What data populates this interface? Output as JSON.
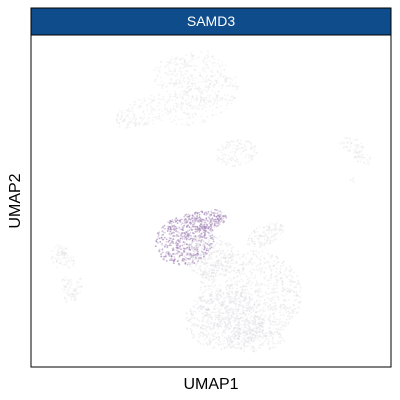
{
  "chart_data": {
    "type": "scatter",
    "title": "SAMD3",
    "xlabel": "UMAP1",
    "ylabel": "UMAP2",
    "grid": false,
    "legend": "none",
    "colors": {
      "strip_background": "#0f4c8c",
      "strip_border": "#000000",
      "panel_border": "#000000",
      "point_low": "#e3e3e3",
      "point_high": "#9b75b3"
    },
    "clusters": [
      {
        "name": "top cluster (low expression)",
        "expression": 0.02
      },
      {
        "name": "middle-right small cluster (low expression)",
        "expression": 0.02
      },
      {
        "name": "right small cluster (low expression)",
        "expression": 0.02
      },
      {
        "name": "left cluster (low expression)",
        "expression": 0.03
      },
      {
        "name": "bottom large cluster (upper-left region expressing SAMD3)",
        "expression": 0.6
      },
      {
        "name": "bottom large cluster (remaining region)",
        "expression": 0.08
      }
    ]
  }
}
